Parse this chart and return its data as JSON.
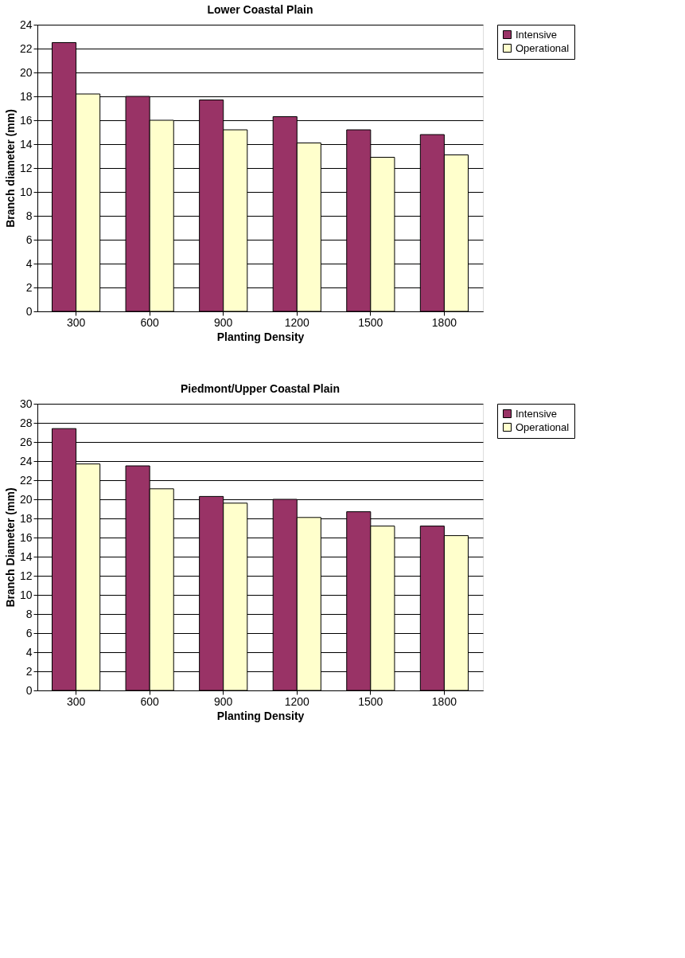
{
  "chart_data": [
    {
      "type": "bar",
      "title": "Lower Coastal Plain",
      "xlabel": "Planting Density",
      "ylabel": "Branch diameter (mm)",
      "categories": [
        "300",
        "600",
        "900",
        "1200",
        "1500",
        "1800"
      ],
      "series": [
        {
          "name": "Intensive",
          "color": "#993366",
          "values": [
            22.5,
            18.0,
            17.7,
            16.3,
            15.2,
            14.8
          ]
        },
        {
          "name": "Operational",
          "color": "#ffffcc",
          "values": [
            18.2,
            16.0,
            15.2,
            14.1,
            12.9,
            13.1
          ]
        }
      ],
      "ylim": [
        0,
        24
      ],
      "yticks": [
        0,
        2,
        4,
        6,
        8,
        10,
        12,
        14,
        16,
        18,
        20,
        22,
        24
      ],
      "grid": "y",
      "legend": "right"
    },
    {
      "type": "bar",
      "title": "Piedmont/Upper Coastal Plain",
      "xlabel": "Planting Density",
      "ylabel": "Branch Diameter (mm)",
      "categories": [
        "300",
        "600",
        "900",
        "1200",
        "1500",
        "1800"
      ],
      "series": [
        {
          "name": "Intensive",
          "color": "#993366",
          "values": [
            27.4,
            23.5,
            20.3,
            20.0,
            18.7,
            17.2
          ]
        },
        {
          "name": "Operational",
          "color": "#ffffcc",
          "values": [
            23.7,
            21.1,
            19.6,
            18.1,
            17.2,
            16.2
          ]
        }
      ],
      "ylim": [
        0,
        30
      ],
      "yticks": [
        0,
        2,
        4,
        6,
        8,
        10,
        12,
        14,
        16,
        18,
        20,
        22,
        24,
        26,
        28,
        30
      ],
      "grid": "y",
      "legend": "right"
    }
  ]
}
